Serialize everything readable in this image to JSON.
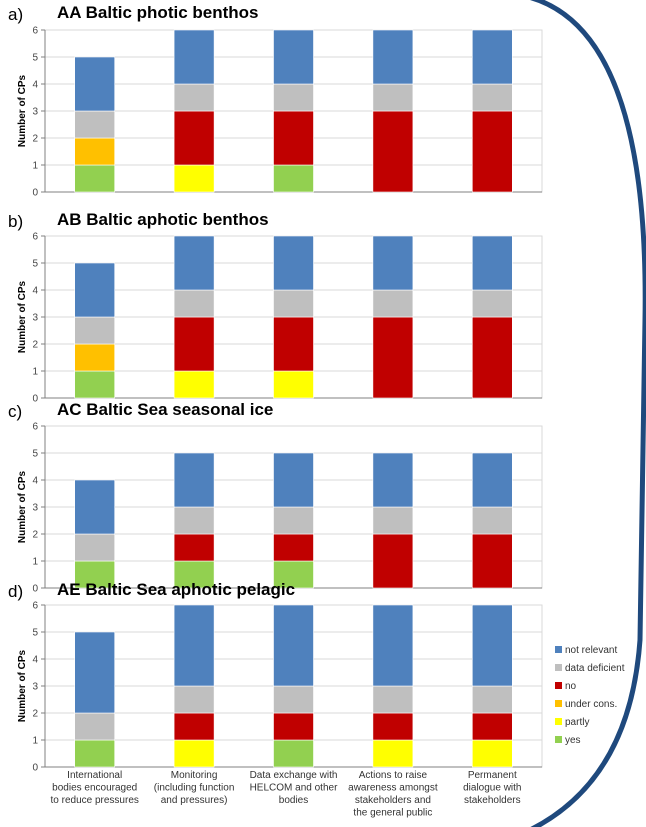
{
  "legend": [
    {
      "key": "not_relevant",
      "label": "not relevant",
      "color": "#4f81bd"
    },
    {
      "key": "data_deficient",
      "label": "data deficient",
      "color": "#bfbfbf"
    },
    {
      "key": "no",
      "label": "no",
      "color": "#c00000"
    },
    {
      "key": "under_cons",
      "label": "under cons.",
      "color": "#ffc000"
    },
    {
      "key": "partly",
      "label": "partly",
      "color": "#ffff00"
    },
    {
      "key": "yes",
      "label": "yes",
      "color": "#92d050"
    }
  ],
  "categories": [
    [
      "International",
      "bodies encouraged",
      "to reduce pressures"
    ],
    [
      "Monitoring",
      "(including function",
      "and pressures)"
    ],
    [
      "Data exchange with",
      "HELCOM and other",
      "bodies"
    ],
    [
      "Actions  to raise",
      "awareness amongst",
      "stakeholders and",
      "the general public"
    ],
    [
      "Permanent",
      "dialogue with",
      "stakeholders"
    ]
  ],
  "chart_data": [
    {
      "type": "bar",
      "stacked": true,
      "letter": "a)",
      "title": "AA Baltic photic benthos",
      "ylabel": "Number of CPs",
      "ylim": [
        0,
        6
      ],
      "series": [
        {
          "name": "yes",
          "values": [
            1,
            0,
            1,
            0,
            0
          ]
        },
        {
          "name": "partly",
          "values": [
            0,
            1,
            0,
            0,
            0
          ]
        },
        {
          "name": "under cons.",
          "values": [
            1,
            0,
            0,
            0,
            0
          ]
        },
        {
          "name": "no",
          "values": [
            0,
            2,
            2,
            3,
            3
          ]
        },
        {
          "name": "data deficient",
          "values": [
            1,
            1,
            1,
            1,
            1
          ]
        },
        {
          "name": "not relevant",
          "values": [
            2,
            2,
            2,
            2,
            2
          ]
        }
      ]
    },
    {
      "type": "bar",
      "stacked": true,
      "letter": "b)",
      "title": "AB Baltic aphotic benthos",
      "ylabel": "Number of CPs",
      "ylim": [
        0,
        6
      ],
      "series": [
        {
          "name": "yes",
          "values": [
            1,
            0,
            0,
            0,
            0
          ]
        },
        {
          "name": "partly",
          "values": [
            0,
            1,
            1,
            0,
            0
          ]
        },
        {
          "name": "under cons.",
          "values": [
            1,
            0,
            0,
            0,
            0
          ]
        },
        {
          "name": "no",
          "values": [
            0,
            2,
            2,
            3,
            3
          ]
        },
        {
          "name": "data deficient",
          "values": [
            1,
            1,
            1,
            1,
            1
          ]
        },
        {
          "name": "not relevant",
          "values": [
            2,
            2,
            2,
            2,
            2
          ]
        }
      ]
    },
    {
      "type": "bar",
      "stacked": true,
      "letter": "c)",
      "title": "AC Baltic Sea seasonal ice",
      "ylabel": "Number of CPs",
      "ylim": [
        0,
        6
      ],
      "series": [
        {
          "name": "yes",
          "values": [
            1,
            1,
            1,
            0,
            0
          ]
        },
        {
          "name": "partly",
          "values": [
            0,
            0,
            0,
            0,
            0
          ]
        },
        {
          "name": "under cons.",
          "values": [
            0,
            0,
            0,
            0,
            0
          ]
        },
        {
          "name": "no",
          "values": [
            0,
            1,
            1,
            2,
            2
          ]
        },
        {
          "name": "data deficient",
          "values": [
            1,
            1,
            1,
            1,
            1
          ]
        },
        {
          "name": "not relevant",
          "values": [
            2,
            2,
            2,
            2,
            2
          ]
        }
      ]
    },
    {
      "type": "bar",
      "stacked": true,
      "letter": "d)",
      "title": "AE Baltic Sea aphotic pelagic",
      "ylabel": "Number of CPs",
      "ylim": [
        0,
        6
      ],
      "series": [
        {
          "name": "yes",
          "values": [
            1,
            0,
            1,
            0,
            0
          ]
        },
        {
          "name": "partly",
          "values": [
            0,
            1,
            0,
            1,
            1
          ]
        },
        {
          "name": "under cons.",
          "values": [
            0,
            0,
            0,
            0,
            0
          ]
        },
        {
          "name": "no",
          "values": [
            0,
            1,
            1,
            1,
            1
          ]
        },
        {
          "name": "data deficient",
          "values": [
            1,
            1,
            1,
            1,
            1
          ]
        },
        {
          "name": "not relevant",
          "values": [
            3,
            3,
            3,
            3,
            3
          ]
        }
      ]
    }
  ]
}
